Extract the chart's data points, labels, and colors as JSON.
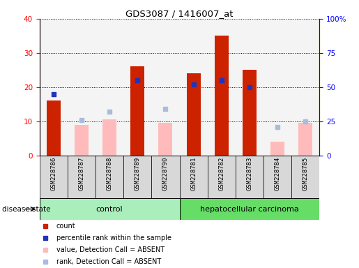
{
  "title": "GDS3087 / 1416007_at",
  "samples": [
    "GSM228786",
    "GSM228787",
    "GSM228788",
    "GSM228789",
    "GSM228790",
    "GSM228781",
    "GSM228782",
    "GSM228783",
    "GSM228784",
    "GSM228785"
  ],
  "count_present": [
    16,
    0,
    0,
    26,
    0,
    24,
    35,
    25,
    0,
    0
  ],
  "percentile_present_pct": [
    45,
    0,
    0,
    55,
    0,
    52,
    55,
    50,
    0,
    0
  ],
  "count_absent": [
    0,
    9,
    10.5,
    0,
    9.5,
    0,
    0,
    0,
    4,
    9.5
  ],
  "percentile_absent_pct": [
    0,
    26,
    32,
    0,
    34,
    0,
    0,
    0,
    21,
    25
  ],
  "ylim_left": [
    0,
    40
  ],
  "ylim_right": [
    0,
    100
  ],
  "yticks_left": [
    0,
    10,
    20,
    30,
    40
  ],
  "yticks_right": [
    0,
    25,
    50,
    75,
    100
  ],
  "yticklabels_right": [
    "0",
    "25",
    "50",
    "75",
    "100%"
  ],
  "color_count_present": "#cc2200",
  "color_percentile_present": "#2233bb",
  "color_count_absent": "#ffbbbb",
  "color_percentile_absent": "#aabbdd",
  "control_color": "#aaeebb",
  "carcinoma_color": "#66dd66",
  "legend_items": [
    {
      "label": "count",
      "color": "#cc2200"
    },
    {
      "label": "percentile rank within the sample",
      "color": "#2233bb"
    },
    {
      "label": "value, Detection Call = ABSENT",
      "color": "#ffbbbb"
    },
    {
      "label": "rank, Detection Call = ABSENT",
      "color": "#aabbdd"
    }
  ],
  "bar_width": 0.5,
  "cell_bg": "#d8d8d8"
}
